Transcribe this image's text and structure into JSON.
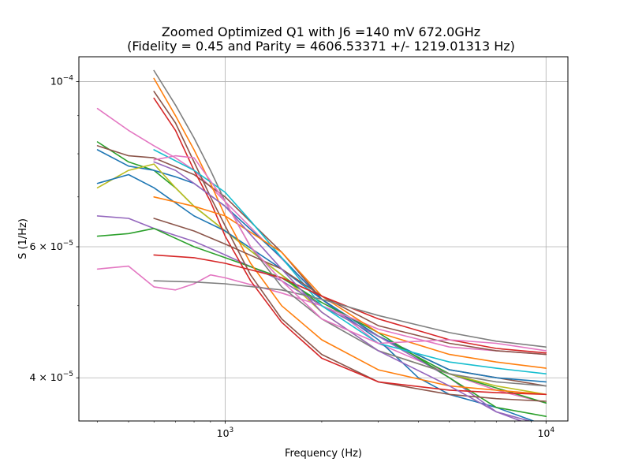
{
  "chart_data": {
    "type": "line",
    "title_line1": "Zoomed Optimized Q1 with J6 =140 mV 672.0GHz",
    "title_line2": "(Fidelity = 0.45 and Parity = 4606.53371 +/- 1219.01313 Hz)",
    "xlabel": "Frequency (Hz)",
    "ylabel": "S (1/Hz)",
    "x_scale": "log",
    "y_scale": "log",
    "xlim": [
      350,
      11700
    ],
    "ylim": [
      3.5e-05,
      0.000108
    ],
    "grid": true,
    "x_ticks": [
      {
        "value": 1000,
        "base": "10",
        "exp": "3"
      },
      {
        "value": 10000,
        "base": "10",
        "exp": "4"
      }
    ],
    "y_ticks": [
      {
        "value": 0.0001,
        "base": "10",
        "exp": "−4"
      },
      {
        "value": 6e-05,
        "prefix": "6 × ",
        "base": "10",
        "exp": "−5"
      },
      {
        "value": 4e-05,
        "prefix": "4 × ",
        "base": "10",
        "exp": "−5"
      }
    ],
    "series": [
      {
        "color": "#e377c2",
        "x": [
          400,
          500,
          600,
          700,
          800,
          1000,
          2000,
          3000,
          5000,
          7000,
          10000
        ],
        "y": [
          9.2e-05,
          8.6e-05,
          8.2e-05,
          7.9e-05,
          7.6e-05,
          6.9e-05,
          5.1e-05,
          4.45e-05,
          4.05e-05,
          3.85e-05,
          3.7e-05
        ]
      },
      {
        "color": "#2ca02c",
        "x": [
          400,
          500,
          600,
          700,
          800,
          1000,
          1500,
          2000,
          3000,
          5000,
          10000
        ],
        "y": [
          8.3e-05,
          7.8e-05,
          7.6e-05,
          7.2e-05,
          6.8e-05,
          6.3e-05,
          5.5e-05,
          5e-05,
          4.55e-05,
          4.05e-05,
          3.7e-05
        ]
      },
      {
        "color": "#8c564b",
        "x": [
          400,
          500,
          600,
          800,
          1000,
          1500,
          2000,
          3000,
          5000,
          10000
        ],
        "y": [
          8.2e-05,
          7.95e-05,
          7.9e-05,
          7.5e-05,
          7e-05,
          5.9e-05,
          5.1e-05,
          4.55e-05,
          4.1e-05,
          3.9e-05
        ]
      },
      {
        "color": "#1f77b4",
        "x": [
          400,
          500,
          600,
          700,
          800,
          1000,
          1500,
          2000,
          3000,
          4000,
          5000,
          7000,
          10000
        ],
        "y": [
          8.1e-05,
          7.7e-05,
          7.6e-05,
          7.45e-05,
          7.3e-05,
          6.8e-05,
          5.8e-05,
          5.1e-05,
          4.5e-05,
          4e-05,
          3.8e-05,
          3.65e-05,
          3.45e-05
        ]
      },
      {
        "color": "#bcbd22",
        "x": [
          400,
          500,
          600,
          700,
          800,
          1000,
          1500,
          2000,
          3000,
          5000,
          7000,
          10000
        ],
        "y": [
          7.2e-05,
          7.6e-05,
          7.75e-05,
          7.2e-05,
          6.8e-05,
          6.3e-05,
          5.5e-05,
          4.9e-05,
          4.35e-05,
          4.05e-05,
          3.9e-05,
          3.8e-05
        ]
      },
      {
        "color": "#1f77b4",
        "x": [
          400,
          500,
          600,
          800,
          1000,
          1500,
          2000,
          3000,
          5000,
          7000,
          10000
        ],
        "y": [
          7.3e-05,
          7.5e-05,
          7.2e-05,
          6.6e-05,
          6.3e-05,
          5.6e-05,
          5.1e-05,
          4.55e-05,
          4.1e-05,
          4e-05,
          3.95e-05
        ]
      },
      {
        "color": "#9467bd",
        "x": [
          400,
          500,
          600,
          800,
          1000,
          1500,
          2000,
          3000,
          5000,
          7000,
          10000
        ],
        "y": [
          6.6e-05,
          6.55e-05,
          6.35e-05,
          6.1e-05,
          5.85e-05,
          5.4e-05,
          5e-05,
          4.55e-05,
          4e-05,
          3.6e-05,
          3.4e-05
        ]
      },
      {
        "color": "#2ca02c",
        "x": [
          400,
          500,
          600,
          800,
          1000,
          1500,
          2000,
          3000,
          5000,
          7000,
          10000
        ],
        "y": [
          6.2e-05,
          6.25e-05,
          6.35e-05,
          6e-05,
          5.8e-05,
          5.45e-05,
          5.05e-05,
          4.6e-05,
          4e-05,
          3.65e-05,
          3.55e-05
        ]
      },
      {
        "color": "#e377c2",
        "x": [
          400,
          500,
          600,
          700,
          800,
          900,
          1000,
          1500,
          2000,
          3000,
          5000,
          7000,
          10000
        ],
        "y": [
          5.6e-05,
          5.65e-05,
          5.3e-05,
          5.25e-05,
          5.35e-05,
          5.5e-05,
          5.45e-05,
          5.2e-05,
          5e-05,
          4.65e-05,
          4.4e-05,
          4.35e-05,
          4.3e-05
        ]
      },
      {
        "color": "#7f7f7f",
        "x": [
          600,
          700,
          800,
          900,
          1000,
          1200,
          1500,
          2000,
          3000,
          5000,
          7000,
          10000
        ],
        "y": [
          0.0001035,
          9.3e-05,
          8.4e-05,
          7.6e-05,
          6.9e-05,
          6e-05,
          5.3e-05,
          4.8e-05,
          4.35e-05,
          4.05e-05,
          3.95e-05,
          3.9e-05
        ]
      },
      {
        "color": "#ff7f0e",
        "x": [
          600,
          700,
          800,
          900,
          1000,
          1200,
          1500,
          2000,
          3000,
          5000,
          7000,
          10000
        ],
        "y": [
          0.000101,
          9e-05,
          8.1e-05,
          7.3e-05,
          6.6e-05,
          5.7e-05,
          5e-05,
          4.5e-05,
          4.1e-05,
          3.9e-05,
          3.85e-05,
          3.8e-05
        ]
      },
      {
        "color": "#8c564b",
        "x": [
          600,
          700,
          800,
          900,
          1000,
          1200,
          1500,
          2000,
          3000,
          5000,
          7000,
          10000
        ],
        "y": [
          9.7e-05,
          8.8e-05,
          7.8e-05,
          7e-05,
          6.4e-05,
          5.5e-05,
          4.8e-05,
          4.3e-05,
          3.95e-05,
          3.8e-05,
          3.75e-05,
          3.72e-05
        ]
      },
      {
        "color": "#d62728",
        "x": [
          600,
          700,
          800,
          900,
          1000,
          1200,
          1500,
          2000,
          3000,
          5000,
          7000,
          10000
        ],
        "y": [
          9.5e-05,
          8.6e-05,
          7.6e-05,
          6.9e-05,
          6.2e-05,
          5.4e-05,
          4.75e-05,
          4.25e-05,
          3.95e-05,
          3.85e-05,
          3.82e-05,
          3.8e-05
        ]
      },
      {
        "color": "#17becf",
        "x": [
          600,
          800,
          1000,
          1200,
          1500,
          2000,
          3000,
          5000,
          7000,
          10000
        ],
        "y": [
          8.1e-05,
          7.6e-05,
          7.1e-05,
          6.5e-05,
          5.8e-05,
          5e-05,
          4.45e-05,
          4.2e-05,
          4.12e-05,
          4.05e-05
        ]
      },
      {
        "color": "#ff7f0e",
        "x": [
          600,
          800,
          1000,
          1500,
          2000,
          3000,
          5000,
          7000,
          10000
        ],
        "y": [
          7e-05,
          6.8e-05,
          6.6e-05,
          5.9e-05,
          5.15e-05,
          4.6e-05,
          4.3e-05,
          4.2e-05,
          4.12e-05
        ]
      },
      {
        "color": "#8c564b",
        "x": [
          600,
          800,
          1000,
          1500,
          2000,
          3000,
          5000,
          7000,
          10000
        ],
        "y": [
          6.55e-05,
          6.3e-05,
          6.05e-05,
          5.6e-05,
          5.15e-05,
          4.7e-05,
          4.45e-05,
          4.35e-05,
          4.3e-05
        ]
      },
      {
        "color": "#d62728",
        "x": [
          600,
          800,
          1000,
          1500,
          2000,
          3000,
          5000,
          7000,
          10000
        ],
        "y": [
          5.85e-05,
          5.8e-05,
          5.7e-05,
          5.45e-05,
          5.15e-05,
          4.8e-05,
          4.5e-05,
          4.38e-05,
          4.32e-05
        ]
      },
      {
        "color": "#7f7f7f",
        "x": [
          600,
          800,
          1000,
          1500,
          2000,
          3000,
          5000,
          7000,
          10000
        ],
        "y": [
          5.4e-05,
          5.38e-05,
          5.35e-05,
          5.25e-05,
          5.1e-05,
          4.85e-05,
          4.6e-05,
          4.48e-05,
          4.4e-05
        ]
      },
      {
        "color": "#9467bd",
        "x": [
          600,
          700,
          800,
          1000,
          1500,
          2000,
          3000,
          5000,
          7000,
          10000
        ],
        "y": [
          7.8e-05,
          7.6e-05,
          7.3e-05,
          6.8e-05,
          5.6e-05,
          4.9e-05,
          4.35e-05,
          3.9e-05,
          3.6e-05,
          3.45e-05
        ]
      },
      {
        "color": "#e377c2",
        "x": [
          600,
          700,
          800,
          1000,
          1200,
          1500,
          2000,
          3000,
          5000,
          7000,
          10000
        ],
        "y": [
          7.85e-05,
          7.95e-05,
          7.9e-05,
          6.9e-05,
          6e-05,
          5.4e-05,
          4.8e-05,
          4.45e-05,
          4.5e-05,
          4.45e-05,
          4.35e-05
        ]
      }
    ]
  }
}
